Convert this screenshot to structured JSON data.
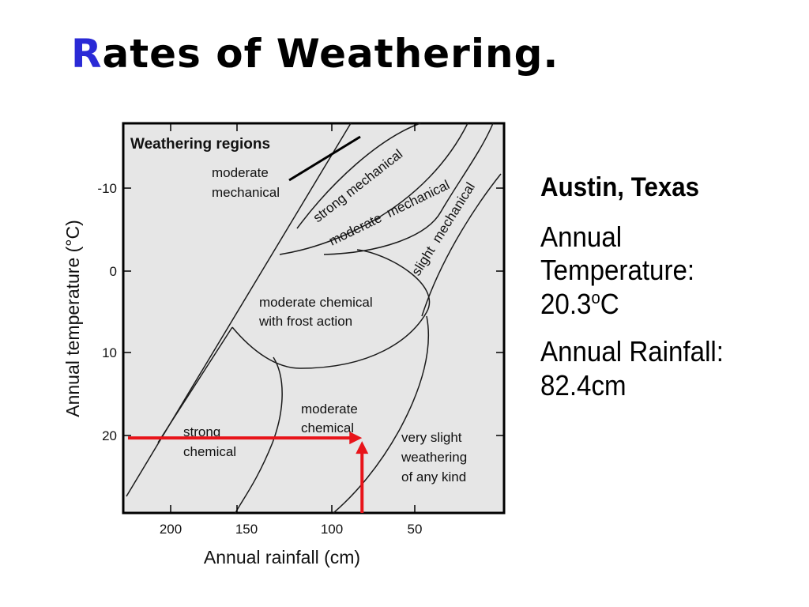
{
  "slide": {
    "title_first_letter": "R",
    "title_rest": "ates of Weathering."
  },
  "info": {
    "heading": "Austin, Texas",
    "temperature_label": "Annual Temperature:",
    "temperature_value": "20.3",
    "temperature_sup": "o",
    "temperature_unit": "C",
    "rainfall_label": "Annual Rainfall:",
    "rainfall_value": "82.4cm"
  },
  "chart_data": {
    "type": "diagram",
    "title": "Weathering regions",
    "xlabel": "Annual rainfall (cm)",
    "ylabel": "Annual temperature (°C)",
    "x_ticks": [
      "200",
      "150",
      "100",
      "50"
    ],
    "y_ticks": [
      "-10",
      "0",
      "10",
      "20"
    ],
    "x_reversed": true,
    "y_reversed": true,
    "regions": [
      "moderate mechanical",
      "strong mechanical",
      "moderate mechanical",
      "slight mechanical",
      "moderate chemical with frost action",
      "strong chemical",
      "moderate chemical",
      "very slight weathering of any kind"
    ],
    "labels": {
      "moderate_mechanical_left": [
        "moderate",
        "mechanical"
      ],
      "strong_mechanical": "strong mechanical",
      "moderate_mechanical_band": "moderate  mechanical",
      "slight_mechanical": "slight  mechanical",
      "moderate_chemical_frost": [
        "moderate chemical",
        "with frost action"
      ],
      "strong_chemical": [
        "strong",
        "chemical"
      ],
      "moderate_chemical": [
        "moderate",
        "chemical"
      ],
      "very_slight": [
        "very slight",
        "weathering",
        "of any kind"
      ]
    },
    "marker": {
      "rainfall_cm": 82.4,
      "temperature_c": 20.3,
      "color": "#e8141a"
    },
    "colors": {
      "background": "#e6e6e6",
      "lines": "#1a1a1a",
      "title_accent": "#2a2ad6"
    }
  }
}
